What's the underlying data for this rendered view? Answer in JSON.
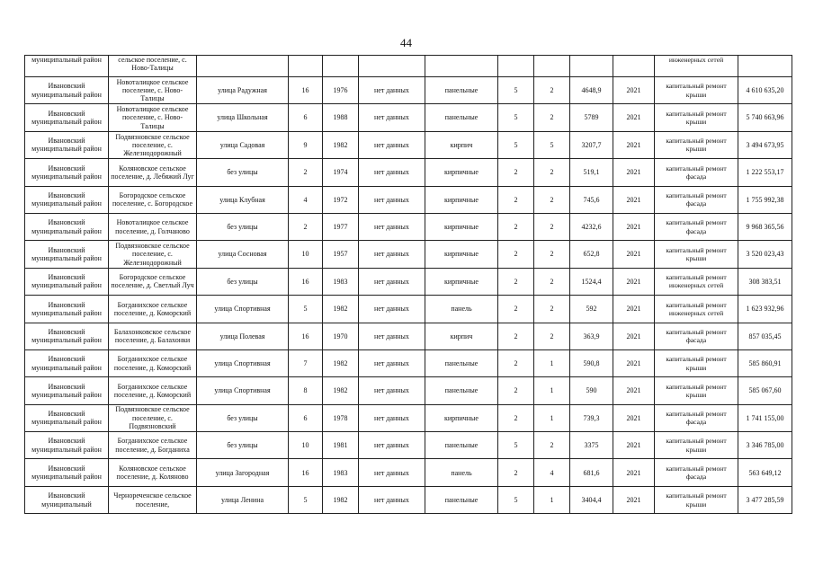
{
  "page_number": "44",
  "first_row": {
    "district": "муниципальный район",
    "settlement": "сельское поселение, с. Ново-Талицы",
    "work": "инженерных сетей"
  },
  "rows": [
    {
      "district": "Ивановский муниципальный район",
      "settlement": "Новоталицкое сельское поселение, с. Ново-Талицы",
      "street": "улица Радужная",
      "house": "16",
      "year": "1976",
      "info": "нет данных",
      "material": "панельные",
      "floors": "5",
      "entrances": "2",
      "area": "4648,9",
      "plan_year": "2021",
      "work": "капитальный ремонт крыши",
      "cost": "4 610 635,20"
    },
    {
      "district": "Ивановский муниципальный район",
      "settlement": "Новоталицкое сельское поселение, с. Ново-Талицы",
      "street": "улица Школьная",
      "house": "6",
      "year": "1988",
      "info": "нет данных",
      "material": "панельные",
      "floors": "5",
      "entrances": "2",
      "area": "5789",
      "plan_year": "2021",
      "work": "капитальный ремонт крыши",
      "cost": "5 740 663,96"
    },
    {
      "district": "Ивановский муниципальный район",
      "settlement": "Подвязновское сельское поселение, с. Железнодорожный",
      "street": "улица Садовая",
      "house": "9",
      "year": "1982",
      "info": "нет данных",
      "material": "кирпич",
      "floors": "5",
      "entrances": "5",
      "area": "3207,7",
      "plan_year": "2021",
      "work": "капитальный ремонт крыши",
      "cost": "3 494 673,95"
    },
    {
      "district": "Ивановский муниципальный район",
      "settlement": "Коляновское сельское поселение, д. Лебяжий Луг",
      "street": "без улицы",
      "house": "2",
      "year": "1974",
      "info": "нет данных",
      "material": "кирпичные",
      "floors": "2",
      "entrances": "2",
      "area": "519,1",
      "plan_year": "2021",
      "work": "капитальный ремонт фасада",
      "cost": "1 222 553,17"
    },
    {
      "district": "Ивановский муниципальный район",
      "settlement": "Богородское сельское поселение, с. Богородское",
      "street": "улица Клубная",
      "house": "4",
      "year": "1972",
      "info": "нет данных",
      "material": "кирпичные",
      "floors": "2",
      "entrances": "2",
      "area": "745,6",
      "plan_year": "2021",
      "work": "капитальный ремонт фасада",
      "cost": "1 755 992,38"
    },
    {
      "district": "Ивановский муниципальный район",
      "settlement": "Новоталицкое сельское поселение, д. Голчаново",
      "street": "без улицы",
      "house": "2",
      "year": "1977",
      "info": "нет данных",
      "material": "кирпичные",
      "floors": "2",
      "entrances": "2",
      "area": "4232,6",
      "plan_year": "2021",
      "work": "капитальный ремонт фасада",
      "cost": "9 968 365,56"
    },
    {
      "district": "Ивановский муниципальный район",
      "settlement": "Подвязновское сельское поселение, с. Железнодорожный",
      "street": "улица Сосновая",
      "house": "10",
      "year": "1957",
      "info": "нет данных",
      "material": "кирпичные",
      "floors": "2",
      "entrances": "2",
      "area": "652,8",
      "plan_year": "2021",
      "work": "капитальный ремонт крыши",
      "cost": "3 520 023,43"
    },
    {
      "district": "Ивановский муниципальный район",
      "settlement": "Богородское сельское поселение, д. Светлый Луч",
      "street": "без улицы",
      "house": "16",
      "year": "1983",
      "info": "нет данных",
      "material": "кирпичные",
      "floors": "2",
      "entrances": "2",
      "area": "1524,4",
      "plan_year": "2021",
      "work": "капитальный ремонт инженерных сетей",
      "cost": "308 383,51"
    },
    {
      "district": "Ивановский муниципальный район",
      "settlement": "Богданихское сельское поселение, д. Коморский",
      "street": "улица Спортивная",
      "house": "5",
      "year": "1982",
      "info": "нет данных",
      "material": "панель",
      "floors": "2",
      "entrances": "2",
      "area": "592",
      "plan_year": "2021",
      "work": "капитальный ремонт инженерных сетей",
      "cost": "1 623 932,96"
    },
    {
      "district": "Ивановский муниципальный район",
      "settlement": "Балахонковское сельское поселение, д. Балахонки",
      "street": "улица Полевая",
      "house": "16",
      "year": "1970",
      "info": "нет данных",
      "material": "кирпич",
      "floors": "2",
      "entrances": "2",
      "area": "363,9",
      "plan_year": "2021",
      "work": "капитальный ремонт фасада",
      "cost": "857 035,45"
    },
    {
      "district": "Ивановский муниципальный район",
      "settlement": "Богданихское сельское поселение, д. Коморский",
      "street": "улица Спортивная",
      "house": "7",
      "year": "1982",
      "info": "нет данных",
      "material": "панельные",
      "floors": "2",
      "entrances": "1",
      "area": "590,8",
      "plan_year": "2021",
      "work": "капитальный ремонт крыши",
      "cost": "585 860,91"
    },
    {
      "district": "Ивановский муниципальный район",
      "settlement": "Богданихское сельское поселение, д. Коморский",
      "street": "улица Спортивная",
      "house": "8",
      "year": "1982",
      "info": "нет данных",
      "material": "панельные",
      "floors": "2",
      "entrances": "1",
      "area": "590",
      "plan_year": "2021",
      "work": "капитальный ремонт крыши",
      "cost": "585 067,60"
    },
    {
      "district": "Ивановский муниципальный район",
      "settlement": "Подвязновское сельское поселение, с. Подвязновский",
      "street": "без улицы",
      "house": "6",
      "year": "1978",
      "info": "нет данных",
      "material": "кирпичные",
      "floors": "2",
      "entrances": "1",
      "area": "739,3",
      "plan_year": "2021",
      "work": "капитальный ремонт фасада",
      "cost": "1 741 155,00"
    },
    {
      "district": "Ивановский муниципальный район",
      "settlement": "Богданихское сельское поселение, д. Богданиха",
      "street": "без улицы",
      "house": "10",
      "year": "1981",
      "info": "нет данных",
      "material": "панельные",
      "floors": "5",
      "entrances": "2",
      "area": "3375",
      "plan_year": "2021",
      "work": "капитальный ремонт крыши",
      "cost": "3 346 785,00"
    },
    {
      "district": "Ивановский муниципальный район",
      "settlement": "Коляновское сельское поселение, д. Коляново",
      "street": "улица Загородная",
      "house": "16",
      "year": "1983",
      "info": "нет данных",
      "material": "панель",
      "floors": "2",
      "entrances": "4",
      "area": "681,6",
      "plan_year": "2021",
      "work": "капитальный ремонт фасада",
      "cost": "563 649,12"
    },
    {
      "district": "Ивановский муниципальный",
      "settlement": "Чернореченское сельское поселение,",
      "street": "улица Ленина",
      "house": "5",
      "year": "1982",
      "info": "нет данных",
      "material": "панельные",
      "floors": "5",
      "entrances": "1",
      "area": "3404,4",
      "plan_year": "2021",
      "work": "капитальный ремонт крыши",
      "cost": "3 477 285,59"
    }
  ]
}
